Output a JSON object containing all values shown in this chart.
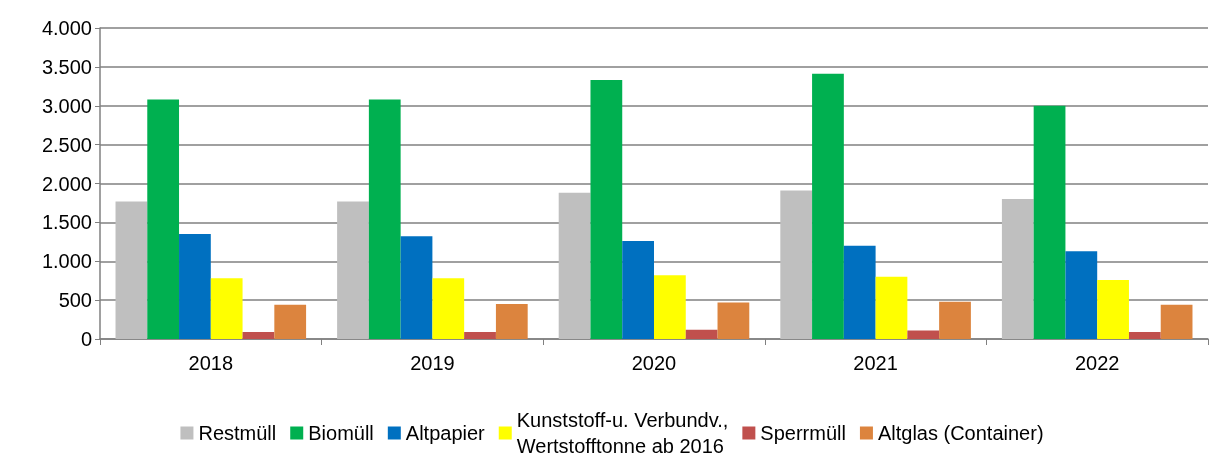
{
  "chart_data": {
    "type": "bar",
    "categories": [
      "2018",
      "2019",
      "2020",
      "2021",
      "2022"
    ],
    "series": [
      {
        "name": "Restmüll",
        "color": "#bfbfbf",
        "values": [
          1770,
          1770,
          1880,
          1910,
          1800
        ]
      },
      {
        "name": "Biomüll",
        "color": "#00b050",
        "values": [
          3080,
          3080,
          3330,
          3410,
          3000
        ]
      },
      {
        "name": "Altpapier",
        "color": "#0070c0",
        "values": [
          1350,
          1320,
          1260,
          1200,
          1130
        ]
      },
      {
        "name": "Kunststoff-u. Verbundv., Wertstofftonne ab 2016",
        "color": "#ffff00",
        "values": [
          780,
          780,
          820,
          800,
          760
        ]
      },
      {
        "name": "Sperrmüll",
        "color": "#c0504d",
        "values": [
          90,
          90,
          120,
          110,
          90
        ]
      },
      {
        "name": "Altglas (Container)",
        "color": "#dc843e",
        "values": [
          440,
          450,
          470,
          480,
          440
        ]
      }
    ],
    "ylim": [
      0,
      4000
    ],
    "yticks": [
      {
        "value": 0,
        "label": "0"
      },
      {
        "value": 500,
        "label": "500"
      },
      {
        "value": 1000,
        "label": "1.000"
      },
      {
        "value": 1500,
        "label": "1.500"
      },
      {
        "value": 2000,
        "label": "2.000"
      },
      {
        "value": 2500,
        "label": "2.500"
      },
      {
        "value": 3000,
        "label": "3.000"
      },
      {
        "value": 3500,
        "label": "3.500"
      },
      {
        "value": 4000,
        "label": "4.000"
      }
    ],
    "grid": "y",
    "legend": "bottom"
  }
}
